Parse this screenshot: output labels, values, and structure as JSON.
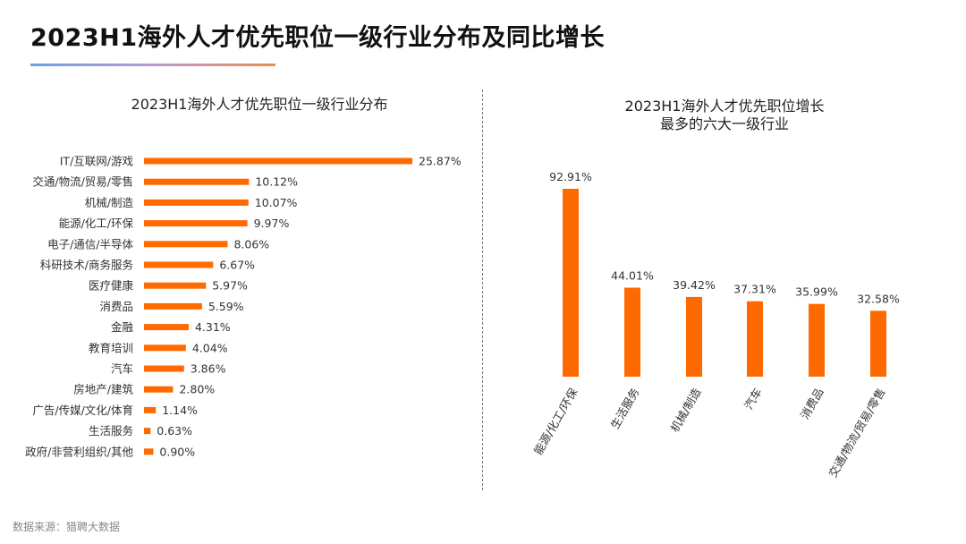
{
  "header": {
    "title": "2023H1海外人才优先职位一级行业分布及同比增长"
  },
  "footer": {
    "source": "数据来源：猎聘大数据"
  },
  "colors": {
    "bar": "#FF6A00",
    "text": "#333333"
  },
  "chart_data": [
    {
      "type": "bar",
      "orientation": "horizontal",
      "title": "2023H1海外人才优先职位一级行业分布",
      "categories": [
        "IT/互联网/游戏",
        "交通/物流/贸易/零售",
        "机械/制造",
        "能源/化工/环保",
        "电子/通信/半导体",
        "科研技术/商务服务",
        "医疗健康",
        "消费品",
        "金融",
        "教育培训",
        "汽车",
        "房地产/建筑",
        "广告/传媒/文化/体育",
        "生活服务",
        "政府/非营利组织/其他"
      ],
      "values": [
        25.87,
        10.12,
        10.07,
        9.97,
        8.06,
        6.67,
        5.97,
        5.59,
        4.31,
        4.04,
        3.86,
        2.8,
        1.14,
        0.63,
        0.9
      ],
      "labels": [
        "25.87%",
        "10.12%",
        "10.07%",
        "9.97%",
        "8.06%",
        "6.67%",
        "5.97%",
        "5.59%",
        "4.31%",
        "4.04%",
        "3.86%",
        "2.80%",
        "1.14%",
        "0.63%",
        "0.90%"
      ],
      "grid": false,
      "legend": "none"
    },
    {
      "type": "bar",
      "orientation": "vertical",
      "title_lines": [
        "2023H1海外人才优先职位增长",
        "最多的六大一级行业"
      ],
      "categories": [
        "能源/化工/环保",
        "生活服务",
        "机械/制造",
        "汽车",
        "消费品",
        "交通/物流/贸易/零售"
      ],
      "values": [
        92.91,
        44.01,
        39.42,
        37.31,
        35.99,
        32.58
      ],
      "labels": [
        "92.91%",
        "44.01%",
        "39.42%",
        "37.31%",
        "35.99%",
        "32.58%"
      ],
      "grid": false,
      "legend": "none"
    }
  ]
}
